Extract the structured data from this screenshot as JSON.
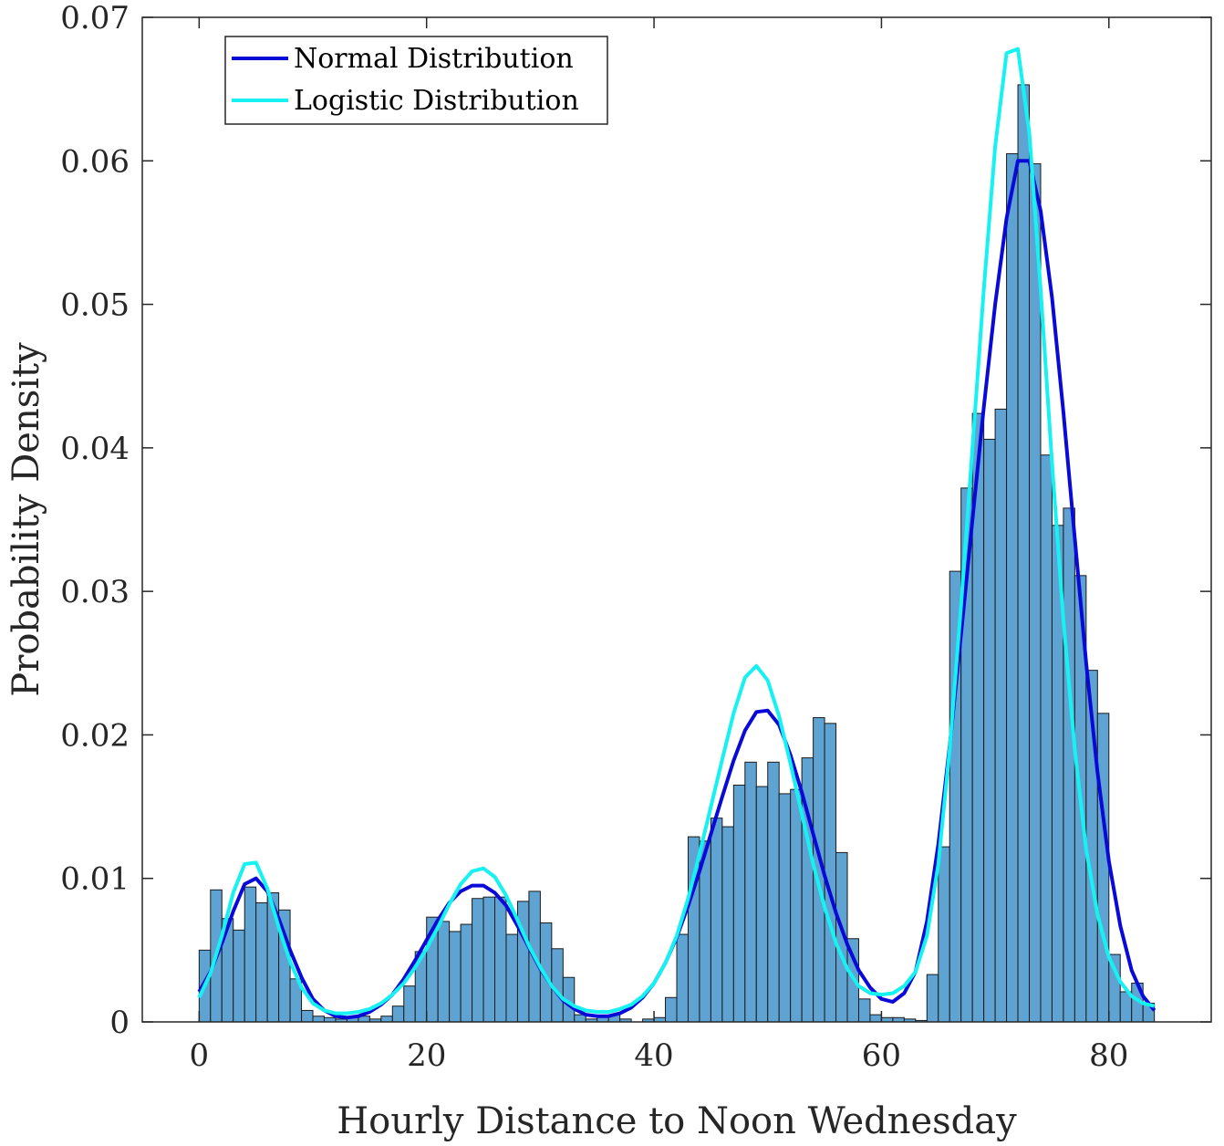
{
  "chart_data": {
    "type": "bar",
    "title": "",
    "xlabel": "Hourly Distance to Noon Wednesday",
    "ylabel": "Probability Density",
    "xlim": [
      -5,
      89
    ],
    "ylim": [
      0,
      0.07
    ],
    "x_ticks": [
      0,
      20,
      40,
      60,
      80
    ],
    "y_ticks": [
      0,
      0.01,
      0.02,
      0.03,
      0.04,
      0.05,
      0.06,
      0.07
    ],
    "x_tick_labels": [
      "0",
      "20",
      "40",
      "60",
      "80"
    ],
    "y_tick_labels": [
      "0",
      "0.01",
      "0.02",
      "0.03",
      "0.04",
      "0.05",
      "0.06",
      "0.07"
    ],
    "grid": false,
    "legend_position": "top-left",
    "histogram": {
      "bin_start": 0,
      "bin_width": 1,
      "color": "#5fa3d3",
      "edge_color": "#1a1a1a",
      "values": [
        0.005,
        0.0092,
        0.0072,
        0.0064,
        0.0094,
        0.0083,
        0.009,
        0.0078,
        0.003,
        0.0008,
        0.0004,
        0.0003,
        0.0002,
        0.0003,
        0.0004,
        0.0002,
        0.0004,
        0.0011,
        0.0025,
        0.0049,
        0.0073,
        0.007,
        0.0063,
        0.0068,
        0.0086,
        0.0087,
        0.0087,
        0.0061,
        0.0084,
        0.0091,
        0.0069,
        0.0051,
        0.0031,
        0.0005,
        0.0002,
        0.0004,
        0.0005,
        0.0002,
        0.0,
        0.0002,
        0.0003,
        0.0017,
        0.0061,
        0.0129,
        0.0126,
        0.0142,
        0.0136,
        0.0165,
        0.0181,
        0.0164,
        0.0181,
        0.0159,
        0.0162,
        0.0184,
        0.0212,
        0.0208,
        0.0118,
        0.0058,
        0.0016,
        0.0005,
        0.0003,
        0.0003,
        0.0002,
        0.0001,
        0.0033,
        0.0122,
        0.0314,
        0.0372,
        0.0424,
        0.0406,
        0.0427,
        0.0605,
        0.0653,
        0.0598,
        0.0395,
        0.0346,
        0.0358,
        0.0311,
        0.0245,
        0.0215,
        0.0047,
        0.0021,
        0.0027,
        0.0013
      ]
    },
    "series": [
      {
        "name": "Normal Distribution",
        "color": "#0a0ad8",
        "x": [
          0,
          1,
          2,
          3,
          4,
          5,
          6,
          7,
          8,
          9,
          10,
          11,
          12,
          13,
          14,
          15,
          16,
          17,
          18,
          19,
          20,
          21,
          22,
          23,
          24,
          25,
          26,
          27,
          28,
          29,
          30,
          31,
          32,
          33,
          34,
          35,
          36,
          37,
          38,
          39,
          40,
          41,
          42,
          43,
          44,
          45,
          46,
          47,
          48,
          49,
          50,
          51,
          52,
          53,
          54,
          55,
          56,
          57,
          58,
          59,
          60,
          61,
          62,
          63,
          64,
          65,
          66,
          67,
          68,
          69,
          70,
          71,
          72,
          73,
          74,
          75,
          76,
          77,
          78,
          79,
          80,
          81,
          82,
          83,
          84
        ],
        "y": [
          0.0021,
          0.0035,
          0.0055,
          0.0077,
          0.0096,
          0.01,
          0.0091,
          0.0072,
          0.005,
          0.0031,
          0.0016,
          0.0008,
          0.0004,
          0.0003,
          0.0004,
          0.0007,
          0.0012,
          0.0019,
          0.003,
          0.0043,
          0.0057,
          0.0071,
          0.0083,
          0.0091,
          0.0095,
          0.0095,
          0.009,
          0.0081,
          0.0067,
          0.0052,
          0.0037,
          0.0025,
          0.0015,
          0.0009,
          0.0005,
          0.0004,
          0.0004,
          0.0006,
          0.001,
          0.0017,
          0.0027,
          0.0041,
          0.0059,
          0.0081,
          0.0105,
          0.0131,
          0.0157,
          0.0182,
          0.0203,
          0.0216,
          0.0217,
          0.0207,
          0.0186,
          0.016,
          0.0131,
          0.0102,
          0.0076,
          0.0054,
          0.0036,
          0.0024,
          0.0016,
          0.0014,
          0.002,
          0.0035,
          0.007,
          0.0124,
          0.0192,
          0.027,
          0.035,
          0.0428,
          0.05,
          0.056,
          0.06,
          0.06,
          0.0565,
          0.0505,
          0.0425,
          0.0337,
          0.025,
          0.0174,
          0.0112,
          0.0067,
          0.0036,
          0.0018,
          0.0008
        ]
      },
      {
        "name": "Logistic Distribution",
        "color": "#16f2f2",
        "x": [
          0,
          1,
          2,
          3,
          4,
          5,
          6,
          7,
          8,
          9,
          10,
          11,
          12,
          13,
          14,
          15,
          16,
          17,
          18,
          19,
          20,
          21,
          22,
          23,
          24,
          25,
          26,
          27,
          28,
          29,
          30,
          31,
          32,
          33,
          34,
          35,
          36,
          37,
          38,
          39,
          40,
          41,
          42,
          43,
          44,
          45,
          46,
          47,
          48,
          49,
          50,
          51,
          52,
          53,
          54,
          55,
          56,
          57,
          58,
          59,
          60,
          61,
          62,
          63,
          64,
          65,
          66,
          67,
          68,
          69,
          70,
          71,
          72,
          73,
          74,
          75,
          76,
          77,
          78,
          79,
          80,
          81,
          82,
          83,
          84
        ],
        "y": [
          0.0017,
          0.0034,
          0.006,
          0.009,
          0.011,
          0.0111,
          0.0093,
          0.0066,
          0.0042,
          0.0024,
          0.0013,
          0.0008,
          0.0006,
          0.0006,
          0.0007,
          0.0009,
          0.0013,
          0.0019,
          0.0027,
          0.0038,
          0.0051,
          0.0066,
          0.0082,
          0.0096,
          0.0105,
          0.0107,
          0.0101,
          0.0088,
          0.0071,
          0.0053,
          0.0038,
          0.0025,
          0.0016,
          0.0011,
          0.0008,
          0.0007,
          0.0007,
          0.0009,
          0.0012,
          0.0018,
          0.0027,
          0.0041,
          0.006,
          0.0086,
          0.0117,
          0.015,
          0.0183,
          0.0215,
          0.024,
          0.0248,
          0.0238,
          0.0213,
          0.018,
          0.0145,
          0.011,
          0.008,
          0.0055,
          0.0037,
          0.0025,
          0.002,
          0.0019,
          0.002,
          0.0025,
          0.0035,
          0.006,
          0.011,
          0.019,
          0.029,
          0.04,
          0.051,
          0.061,
          0.0675,
          0.0678,
          0.062,
          0.051,
          0.039,
          0.028,
          0.019,
          0.012,
          0.0075,
          0.0045,
          0.0028,
          0.0018,
          0.0013,
          0.0011
        ]
      }
    ]
  }
}
